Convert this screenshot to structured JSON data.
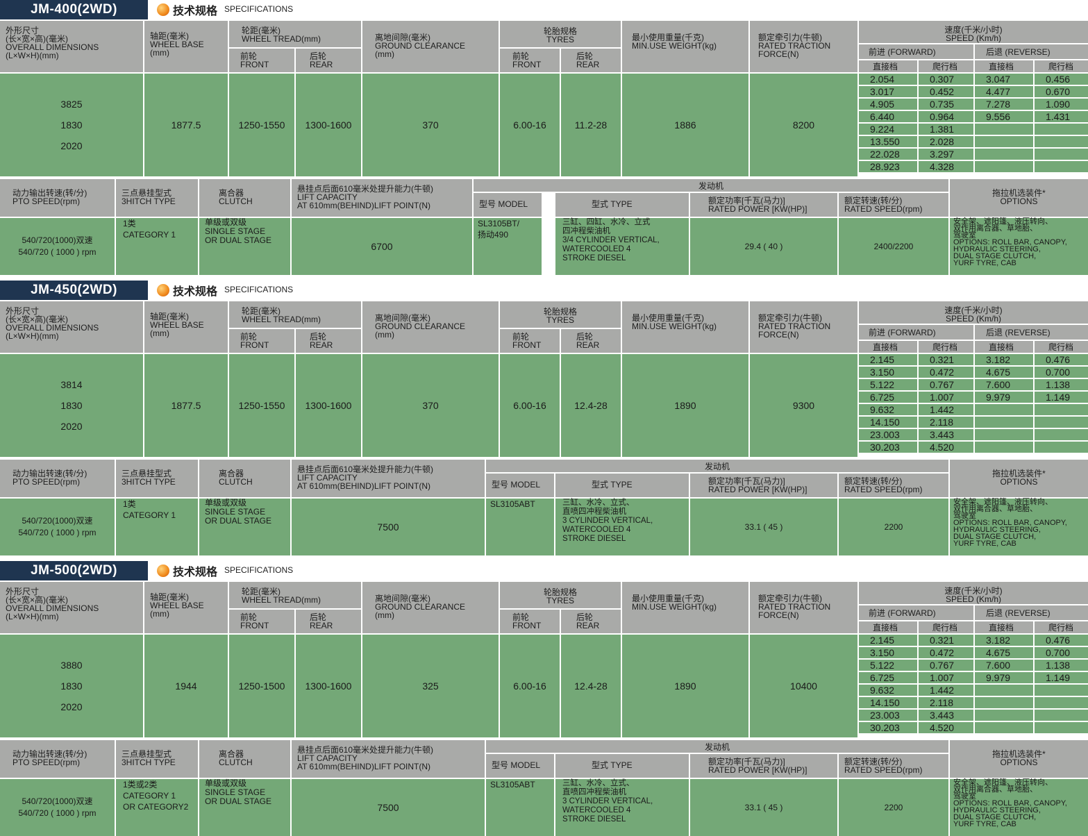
{
  "spec_heading": {
    "cn": "技术规格",
    "en": "SPECIFICATIONS"
  },
  "labels": {
    "dimensions": [
      "外形尺寸",
      "(长×宽×高)(毫米)",
      "OVERALL DIMENSIONS",
      "(L×W×H)(mm)"
    ],
    "wheelbase": [
      "轴距(毫米)",
      "WHEEL BASE",
      "(mm)"
    ],
    "tread": [
      "轮距(毫米)",
      "WHEEL TREAD(mm)"
    ],
    "front": [
      "前轮",
      "FRONT"
    ],
    "rear": [
      "后轮",
      "REAR"
    ],
    "clearance": [
      "离地间隙(毫米)",
      "GROUND CLEARANCE",
      "(mm)"
    ],
    "tyres": [
      "轮胎规格",
      "TYRES"
    ],
    "weight": [
      "最小使用重量(千克)",
      "MIN.USE WEIGHT(kg)"
    ],
    "traction": [
      "额定牵引力(牛顿)",
      "RATED TRACTION",
      "FORCE(N)"
    ],
    "speed": [
      "速度(千米/小时)",
      "SPEED (Km/h)"
    ],
    "forward": "前进 (FORWARD)",
    "reverse": "后退 (REVERSE)",
    "direct": "直接档",
    "creep": "爬行档",
    "pto": [
      "动力输出转速(转/分)",
      "PTO SPEED(rpm)"
    ],
    "hitch": [
      "三点悬挂型式",
      "3HITCH TYPE"
    ],
    "clutch": [
      "离合器",
      "CLUTCH"
    ],
    "lift": [
      "悬挂点后面610毫米处提升能力(牛顿)",
      "LIFT CAPACITY",
      "AT 610mm(BEHIND)LIFT POINT(N)"
    ],
    "engine": "发动机",
    "model": "型号 MODEL",
    "type": "型式 TYPE",
    "power": [
      "额定功率[千瓦(马力)]",
      "RATED POWER [KW(HP)]"
    ],
    "rspeed": [
      "额定转速(转/分)",
      "RATED SPEED(rpm)"
    ],
    "options": [
      "拖拉机选装件*",
      "OPTIONS"
    ]
  },
  "models": [
    {
      "name": "JM-400(2WD)",
      "dims": [
        "3825",
        "1830",
        "2020"
      ],
      "wheelbase": "1877.5",
      "tread_front": "1250-1550",
      "tread_rear": "1300-1600",
      "clearance": "370",
      "tyre_front": "6.00-16",
      "tyre_rear": "11.2-28",
      "weight": "1886",
      "traction": "8200",
      "fwd_direct": [
        "2.054",
        "3.017",
        "4.905",
        "6.440",
        "9.224",
        "13.550",
        "22.028",
        "28.923"
      ],
      "fwd_creep": [
        "0.307",
        "0.452",
        "0.735",
        "0.964",
        "1.381",
        "2.028",
        "3.297",
        "4.328"
      ],
      "rev_direct": [
        "3.047",
        "4.477",
        "7.278",
        "9.556"
      ],
      "rev_creep": [
        "0.456",
        "0.670",
        "1.090",
        "1.431"
      ],
      "pto": [
        "540/720(1000)双速",
        "540/720 ( 1000 ) rpm"
      ],
      "hitch": [
        "1类",
        "CATEGORY 1"
      ],
      "clutch": [
        "单级或双级",
        "SINGLE STAGE",
        "OR DUAL STAGE"
      ],
      "lift": "6700",
      "engine_model": [
        "SL3105BT/",
        "扬动490"
      ],
      "engine_type": [
        "三缸、四缸、水冷、立式",
        "四冲程柴油机",
        "3/4 CYLINDER VERTICAL,",
        "WATERCOOLED 4",
        "STROKE DIESEL"
      ],
      "power": "29.4 ( 40 )",
      "rated_speed": "2400/2200",
      "options": [
        "安全架、遮阳篷、液压转向、",
        "双作用离合器、草地胎、",
        "驾驶室",
        "OPTIONS: ROLL BAR, CANOPY,",
        "HYDRAULIC STEERING,",
        "DUAL STAGE CLUTCH,",
        "YURF TYRE, CAB"
      ]
    },
    {
      "name": "JM-450(2WD)",
      "dims": [
        "3814",
        "1830",
        "2020"
      ],
      "wheelbase": "1877.5",
      "tread_front": "1250-1550",
      "tread_rear": "1300-1600",
      "clearance": "370",
      "tyre_front": "6.00-16",
      "tyre_rear": "12.4-28",
      "weight": "1890",
      "traction": "9300",
      "fwd_direct": [
        "2.145",
        "3.150",
        "5.122",
        "6.725",
        "9.632",
        "14.150",
        "23.003",
        "30.203"
      ],
      "fwd_creep": [
        "0.321",
        "0.472",
        "0.767",
        "1.007",
        "1.442",
        "2.118",
        "3.443",
        "4.520"
      ],
      "rev_direct": [
        "3.182",
        "4.675",
        "7.600",
        "9.979"
      ],
      "rev_creep": [
        "0.476",
        "0.700",
        "1.138",
        "1.149"
      ],
      "pto": [
        "540/720(1000)双速",
        "540/720 ( 1000 ) rpm"
      ],
      "hitch": [
        "1类",
        "CATEGORY 1"
      ],
      "clutch": [
        "单级或双级",
        "SINGLE STAGE",
        "OR DUAL STAGE"
      ],
      "lift": "7500",
      "engine_model": [
        "SL3105ABT"
      ],
      "engine_type": [
        "三缸、水冷、立式、",
        "直喷四冲程柴油机",
        "3 CYLINDER VERTICAL,",
        "WATERCOOLED 4",
        "STROKE DIESEL"
      ],
      "power": "33.1 ( 45 )",
      "rated_speed": "2200",
      "options": [
        "安全架、遮阳篷、液压转向、",
        "双作用离合器、草地胎、",
        "驾驶室",
        "OPTIONS: ROLL BAR, CANOPY,",
        "HYDRAULIC STEERING,",
        "DUAL STAGE CLUTCH,",
        "YURF TYRE, CAB"
      ]
    },
    {
      "name": "JM-500(2WD)",
      "dims": [
        "3880",
        "1830",
        "2020"
      ],
      "wheelbase": "1944",
      "tread_front": "1250-1500",
      "tread_rear": "1300-1600",
      "clearance": "325",
      "tyre_front": "6.00-16",
      "tyre_rear": "12.4-28",
      "weight": "1890",
      "traction": "10400",
      "fwd_direct": [
        "2.145",
        "3.150",
        "5.122",
        "6.725",
        "9.632",
        "14.150",
        "23.003",
        "30.203"
      ],
      "fwd_creep": [
        "0.321",
        "0.472",
        "0.767",
        "1.007",
        "1.442",
        "2.118",
        "3.443",
        "4.520"
      ],
      "rev_direct": [
        "3.182",
        "4.675",
        "7.600",
        "9.979"
      ],
      "rev_creep": [
        "0.476",
        "0.700",
        "1.138",
        "1.149"
      ],
      "pto": [
        "540/720(1000)双速",
        "540/720 ( 1000 ) rpm"
      ],
      "hitch": [
        "1类或2类",
        "CATEGORY 1",
        "OR CATEGORY2"
      ],
      "clutch": [
        "单级或双级",
        "SINGLE STAGE",
        "OR DUAL STAGE"
      ],
      "lift": "7500",
      "engine_model": [
        "SL3105ABT"
      ],
      "engine_type": [
        "三缸、水冷、立式、",
        "直喷四冲程柴油机",
        "3 CYLINDER VERTICAL,",
        "WATERCOOLED 4",
        "STROKE DIESEL"
      ],
      "power": "33.1 ( 45 )",
      "rated_speed": "2200",
      "options": [
        "安全架、遮阳篷、液压转向、",
        "双作用离合器、草地胎、",
        "驾驶室",
        "OPTIONS: ROLL BAR, CANOPY,",
        "HYDRAULIC STEERING,",
        "DUAL STAGE CLUTCH,",
        "YURF TYRE, CAB"
      ]
    }
  ]
}
